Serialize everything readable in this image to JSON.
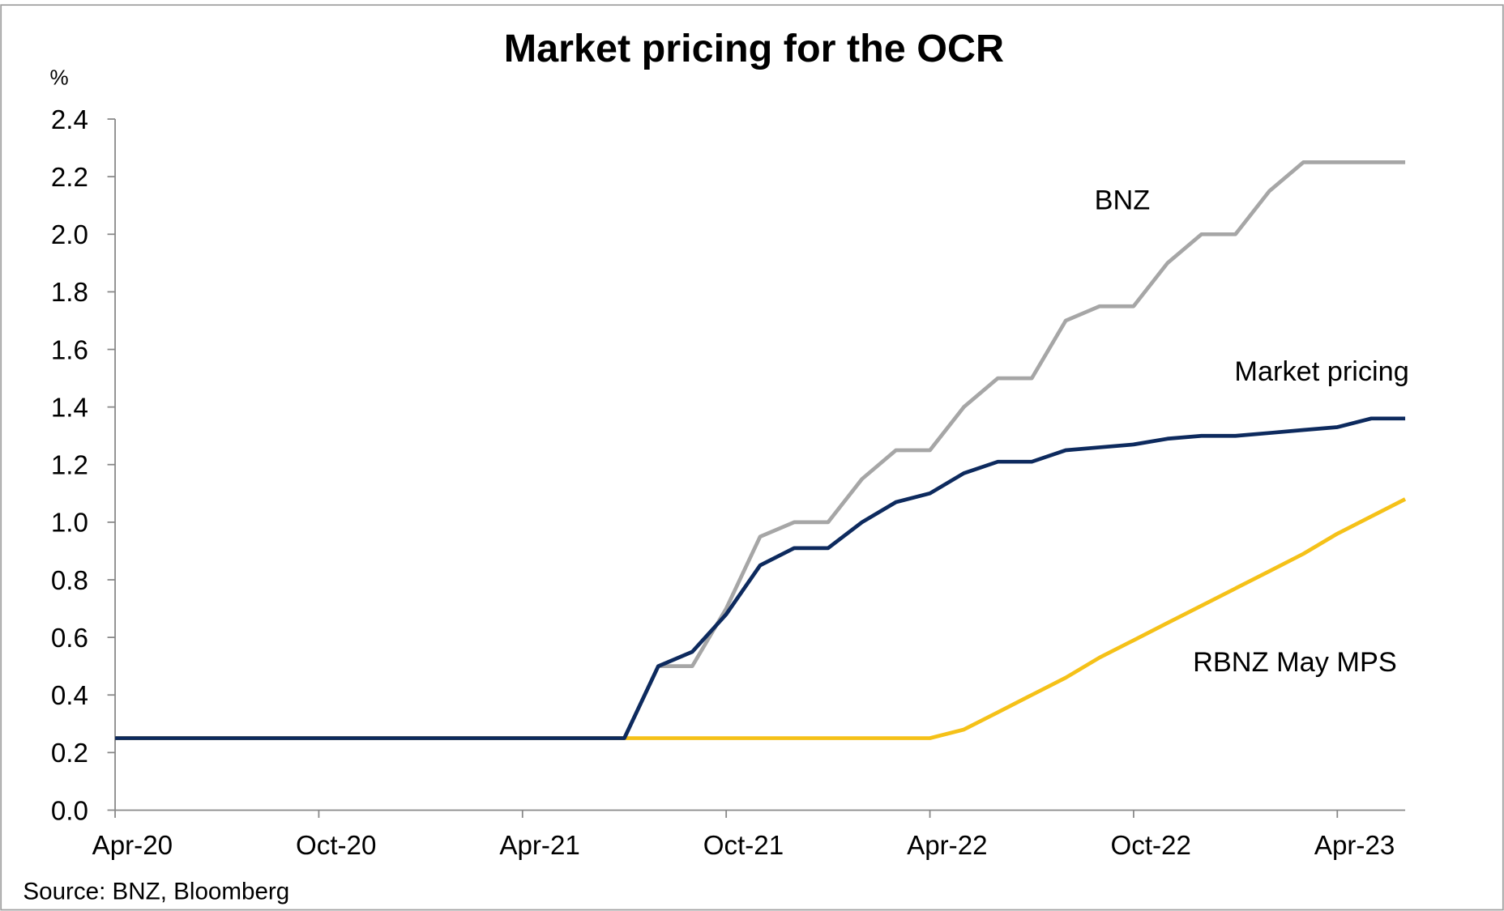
{
  "chart_data": {
    "type": "line",
    "title": "Market pricing for the OCR",
    "y_unit": "%",
    "source": "Source: BNZ, Bloomberg",
    "categories": [
      "Apr-20",
      null,
      null,
      null,
      null,
      null,
      "Oct-20",
      null,
      null,
      null,
      null,
      null,
      "Apr-21",
      null,
      null,
      null,
      null,
      null,
      "Oct-21",
      null,
      null,
      null,
      null,
      null,
      "Apr-22",
      null,
      null,
      null,
      null,
      null,
      "Oct-22",
      null,
      null,
      null,
      null,
      null,
      "Apr-23",
      null,
      null
    ],
    "ylim": [
      0,
      2.4
    ],
    "yticks": [
      {
        "value": 0,
        "label": "0.0"
      },
      0.2,
      0.4,
      0.6,
      0.8,
      {
        "value": 1,
        "label": "1.0"
      },
      1.2,
      1.4,
      1.6,
      1.8,
      {
        "value": 2,
        "label": "2.0"
      },
      2.2,
      2.4
    ],
    "series": [
      {
        "name": "BNZ",
        "color": "#a6a6a6",
        "values": [
          0.25,
          0.25,
          0.25,
          0.25,
          0.25,
          0.25,
          0.25,
          0.25,
          0.25,
          0.25,
          0.25,
          0.25,
          0.25,
          0.25,
          0.25,
          0.25,
          0.5,
          0.5,
          0.7,
          0.95,
          1.0,
          1.0,
          1.15,
          1.25,
          1.25,
          1.4,
          1.5,
          1.5,
          1.7,
          1.75,
          1.75,
          1.9,
          2.0,
          2.0,
          2.15,
          2.25,
          2.25,
          2.25,
          2.25
        ]
      },
      {
        "name": "RBNZ May MPS",
        "color": "#f5c118",
        "values": [
          0.25,
          0.25,
          0.25,
          0.25,
          0.25,
          0.25,
          0.25,
          0.25,
          0.25,
          0.25,
          0.25,
          0.25,
          0.25,
          0.25,
          0.25,
          0.25,
          0.25,
          0.25,
          0.25,
          0.25,
          0.25,
          0.25,
          0.25,
          0.25,
          0.25,
          0.28,
          0.34,
          0.4,
          0.46,
          0.53,
          0.59,
          0.65,
          0.71,
          0.77,
          0.83,
          0.89,
          0.96,
          1.02,
          1.08
        ]
      },
      {
        "name": "Market pricing",
        "color": "#0d2a5e",
        "values": [
          0.25,
          0.25,
          0.25,
          0.25,
          0.25,
          0.25,
          0.25,
          0.25,
          0.25,
          0.25,
          0.25,
          0.25,
          0.25,
          0.25,
          0.25,
          0.25,
          0.5,
          0.55,
          0.68,
          0.85,
          0.91,
          0.91,
          1.0,
          1.07,
          1.1,
          1.17,
          1.21,
          1.21,
          1.25,
          1.26,
          1.27,
          1.29,
          1.3,
          1.3,
          1.31,
          1.32,
          1.33,
          1.36,
          1.36
        ]
      }
    ]
  }
}
